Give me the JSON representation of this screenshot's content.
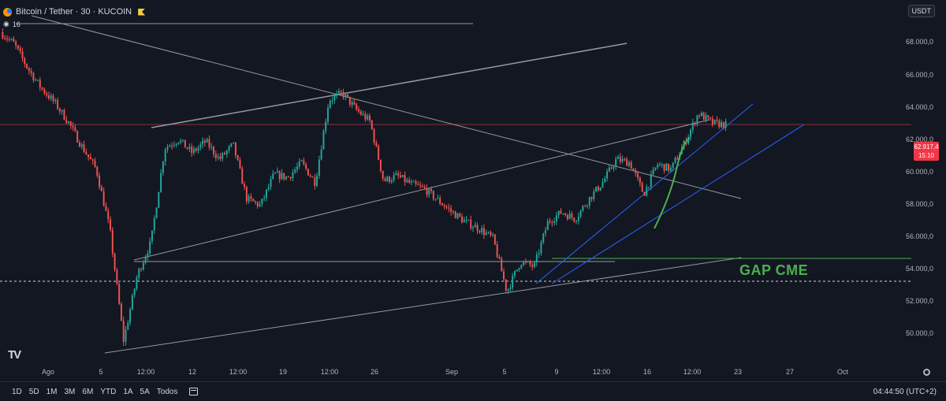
{
  "header": {
    "title": "Bitcoin / Tether · 30 · KUCOIN",
    "indicator_value": "16",
    "currency_button": "USDT"
  },
  "price_axis": [
    "68.000,0",
    "66.000,0",
    "64.000,0",
    "62.000,0",
    "60.000,0",
    "58.000,0",
    "56.000,0",
    "54.000,0",
    "52.000,0",
    "50.000,0"
  ],
  "current_price": {
    "value": "62.917,4",
    "countdown": "15:10",
    "color": "#f23645"
  },
  "date_axis": [
    "Ago",
    "5",
    "12:00",
    "12",
    "12:00",
    "19",
    "12:00",
    "26",
    "Sep",
    "5",
    "9",
    "12:00",
    "16",
    "12:00",
    "23",
    "27",
    "Oct"
  ],
  "annotation": {
    "text": "GAP CME",
    "color": "#4caf50"
  },
  "bottom_bar": {
    "ranges": [
      "1D",
      "5D",
      "1M",
      "3M",
      "6M",
      "YTD",
      "1A",
      "5A",
      "Todos"
    ],
    "clock": "04:44:50 (UTC+2)"
  },
  "logo": "TV",
  "colors": {
    "background": "#131722",
    "up": "#26a69a",
    "down": "#ef5350",
    "trendline_blue": "#2962ff",
    "trendline_gray": "#9598a1"
  },
  "chart_data": {
    "type": "line",
    "xlabel": "",
    "ylabel": "",
    "ylim": [
      48500,
      69500
    ],
    "series": [
      {
        "values": [
          68500,
          67800,
          66300,
          65100,
          64200,
          63000,
          61500,
          60200,
          56500,
          49800,
          53800,
          55800,
          61500,
          62000,
          61200,
          61900,
          60800,
          61700,
          58400,
          58000,
          59900,
          59700,
          60600,
          59400,
          64400,
          64800,
          63800,
          63100,
          59500,
          59800,
          59300,
          59000,
          58300,
          57600,
          57000,
          56600,
          56000,
          52800,
          54600,
          54300,
          57000,
          57600,
          57200,
          58400,
          59400,
          60800,
          60600,
          58700,
          60500,
          60200,
          61800,
          63600,
          63000,
          62900
        ]
      }
    ]
  }
}
